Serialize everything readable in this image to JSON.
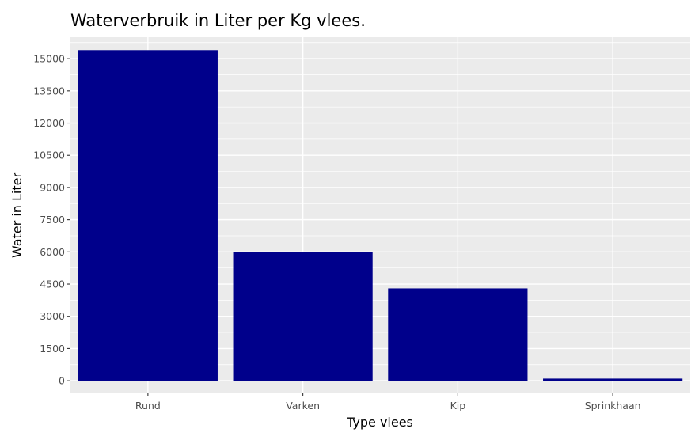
{
  "chart_data": {
    "type": "bar",
    "title": "Waterverbruik in Liter per Kg vlees.",
    "xlabel": "Type vlees",
    "ylabel": "Water in Liter",
    "categories": [
      "Rund",
      "Varken",
      "Kip",
      "Sprinkhaan"
    ],
    "values": [
      15400,
      6000,
      4300,
      100
    ],
    "yticks": [
      0,
      1500,
      3000,
      4500,
      6000,
      7500,
      9000,
      10500,
      12000,
      13500,
      15000
    ],
    "ylim": [
      -585,
      16000
    ],
    "grid": true,
    "legend": "none",
    "colors": {
      "bar": "#00008B",
      "panel": "#EBEBEB",
      "grid": "#FFFFFF"
    }
  }
}
